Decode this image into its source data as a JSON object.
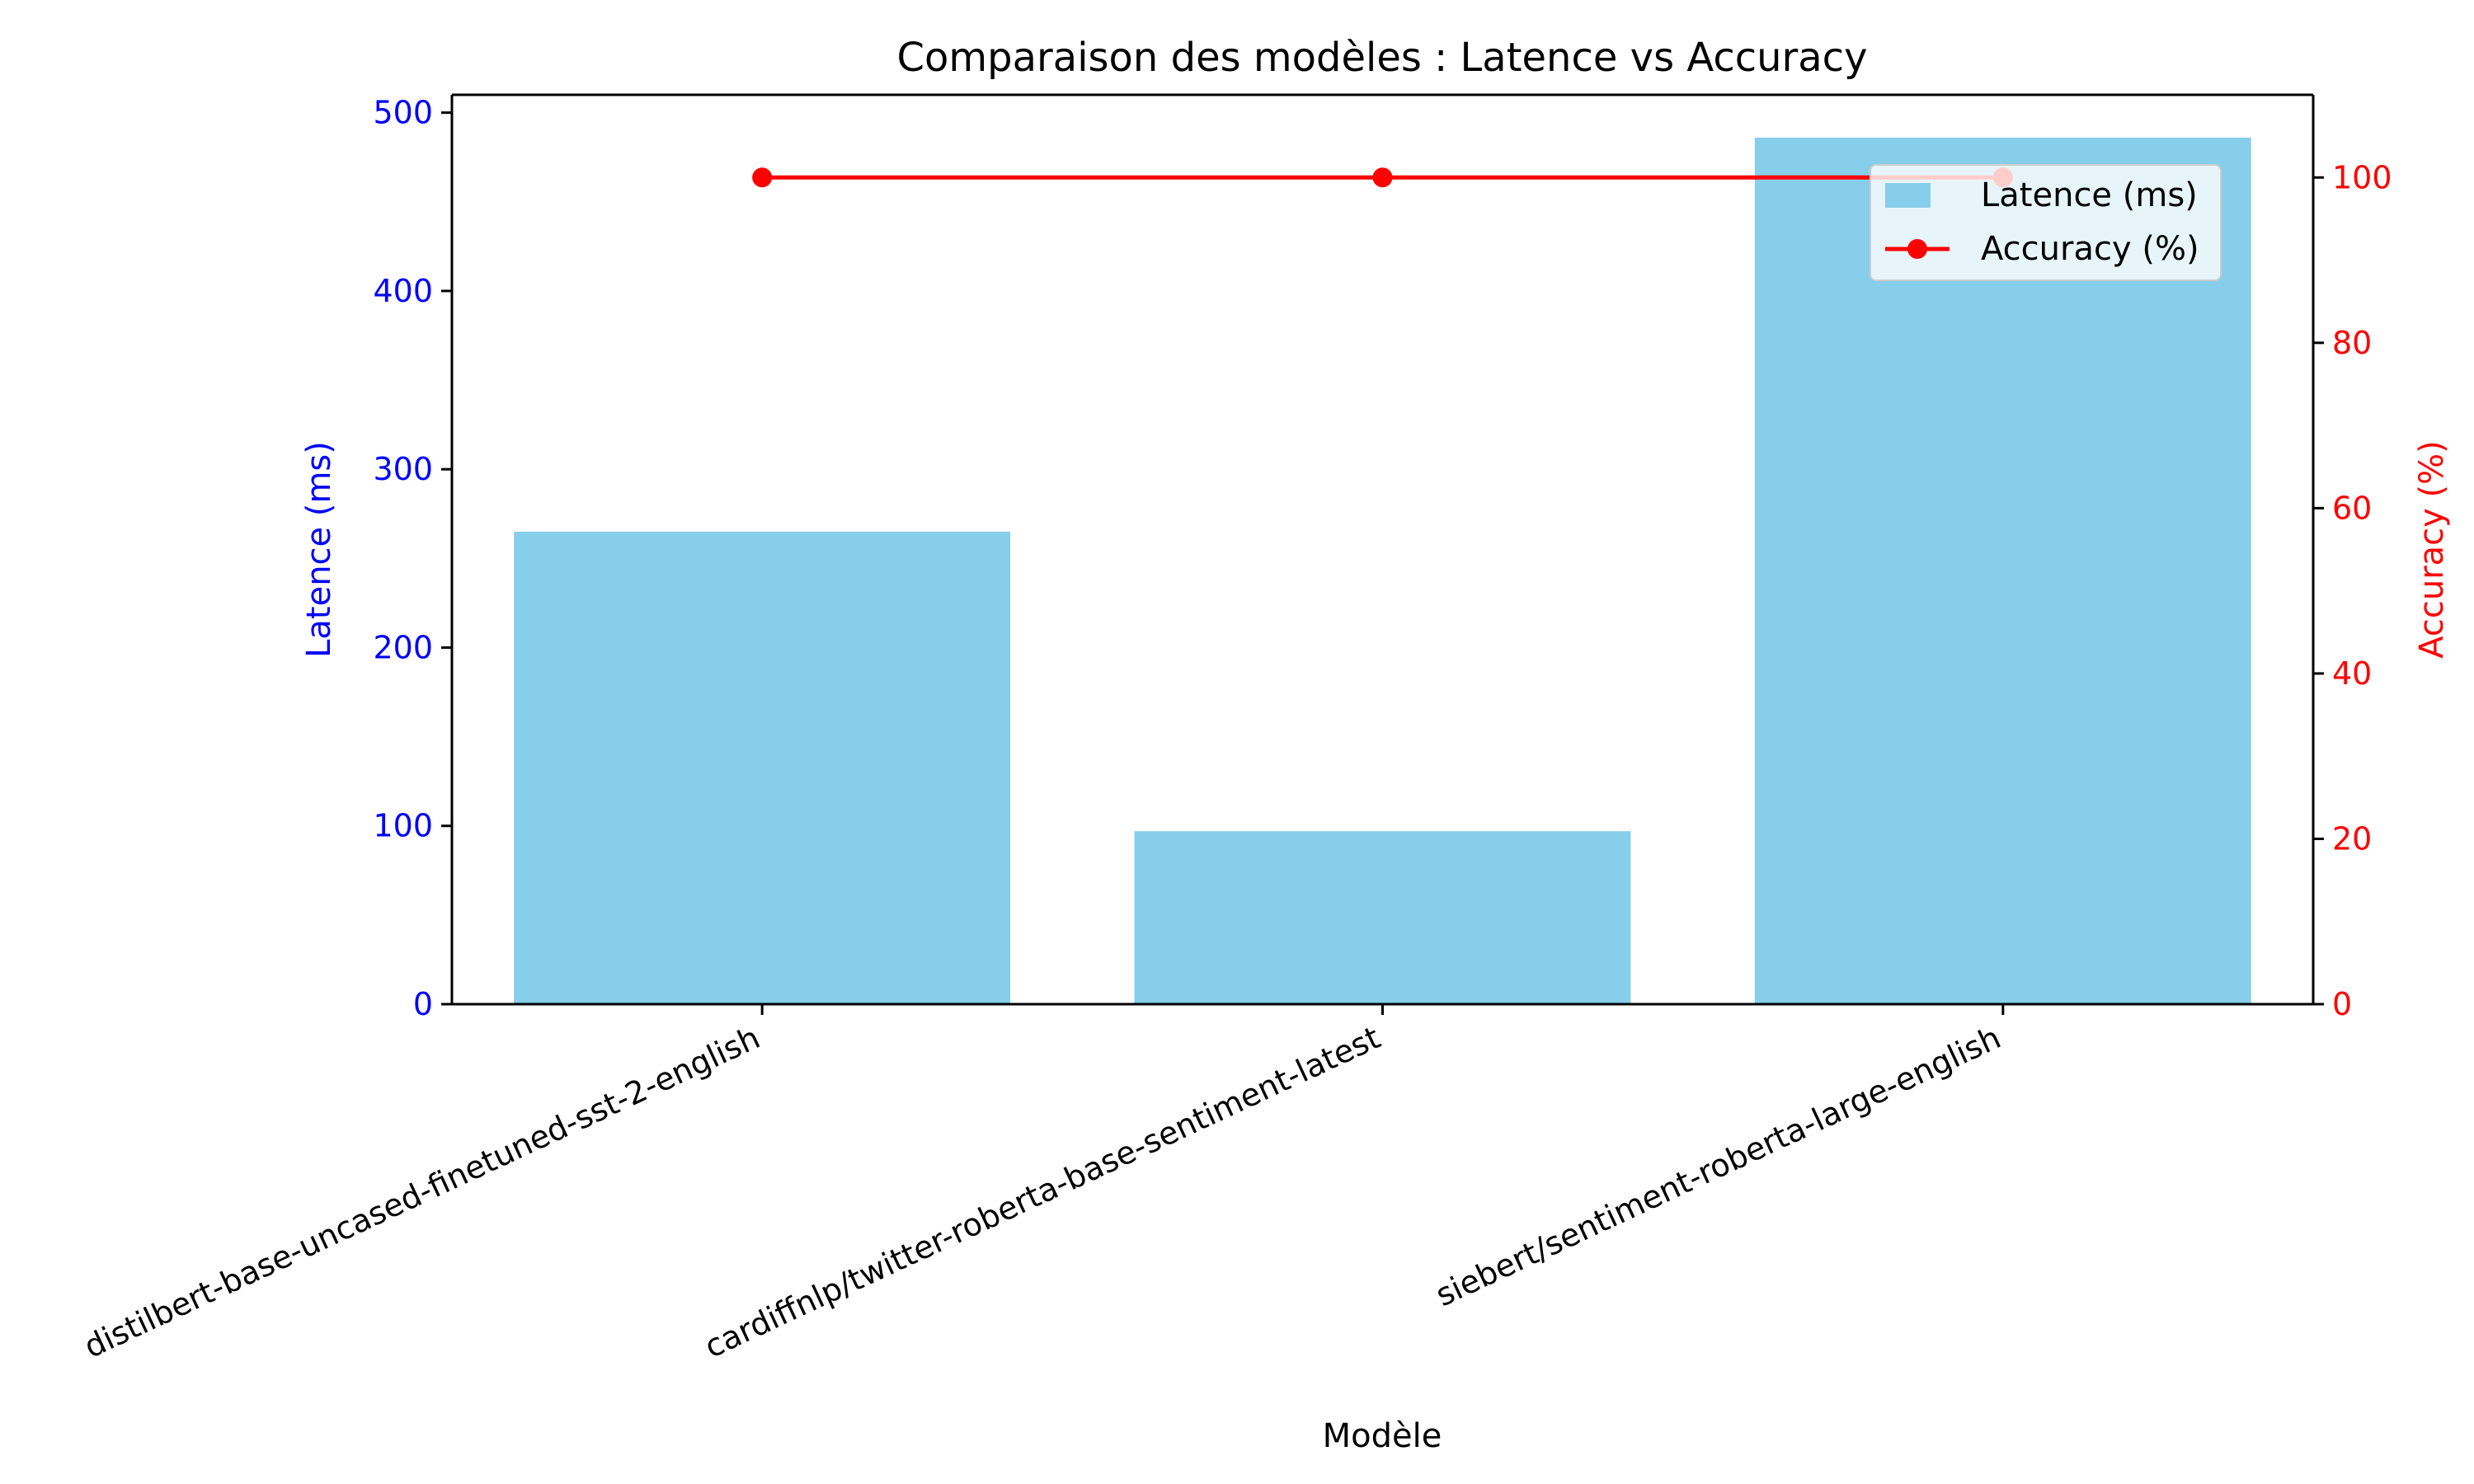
{
  "chart_data": {
    "type": "bar",
    "title": "Comparaison des modèles : Latence vs Accuracy",
    "xlabel": "Modèle",
    "categories": [
      "distilbert-base-uncased-finetuned-sst-2-english",
      "cardiffnlp/twitter-roberta-base-sentiment-latest",
      "siebert/sentiment-roberta-large-english"
    ],
    "series": [
      {
        "name": "Latence (ms)",
        "type": "bar",
        "axis": "left",
        "color": "#87CEEB",
        "values": [
          265,
          97,
          486
        ]
      },
      {
        "name": "Accuracy (%)",
        "type": "line",
        "axis": "right",
        "color": "#FF0000",
        "marker": "circle",
        "values": [
          100,
          100,
          100
        ]
      }
    ],
    "y_left": {
      "label": "Latence (ms)",
      "range": [
        0,
        510
      ],
      "ticks": [
        0,
        100,
        200,
        300,
        400,
        500
      ],
      "color": "#0000FF"
    },
    "y_right": {
      "label": "Accuracy (%)",
      "range": [
        0,
        110
      ],
      "ticks": [
        0,
        20,
        40,
        60,
        80,
        100
      ],
      "color": "#FF0000"
    },
    "grid": false,
    "legend_position": "top-right"
  }
}
